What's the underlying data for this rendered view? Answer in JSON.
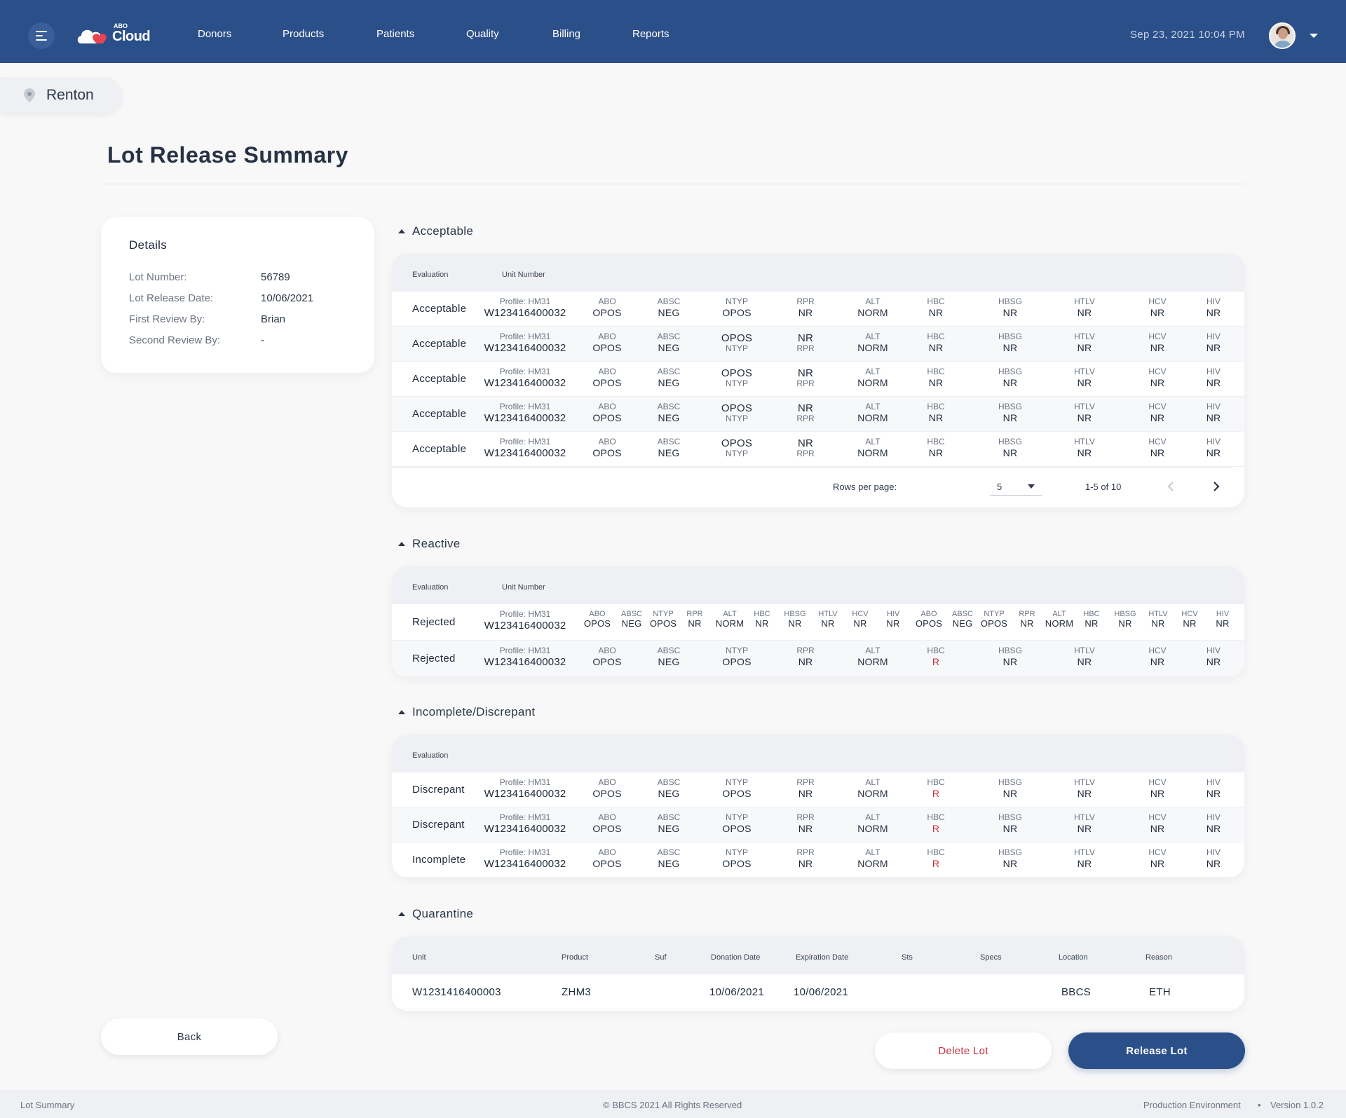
{
  "header": {
    "logo": {
      "small": "ABO",
      "main": "Cloud"
    },
    "nav": [
      "Donors",
      "Products",
      "Patients",
      "Quality",
      "Billing",
      "Reports"
    ],
    "datetime": "Sep 23, 2021 10:04 PM"
  },
  "location": "Renton",
  "page_title": "Lot Release Summary",
  "details": {
    "heading": "Details",
    "rows": [
      {
        "k": "Lot Number:",
        "v": "56789"
      },
      {
        "k": "Lot Release Date:",
        "v": "10/06/2021"
      },
      {
        "k": "First Review By:",
        "v": "Brian"
      },
      {
        "k": "Second Review By:",
        "v": "-"
      }
    ]
  },
  "acceptable": {
    "title": "Acceptable",
    "columns": {
      "evaluation": "Evaluation",
      "unit": "Unit Number"
    },
    "rows": [
      {
        "ev": "Acceptable",
        "profile": "Profile: HM31",
        "unit": "W123416400032",
        "ntyp_swap": false
      },
      {
        "ev": "Acceptable",
        "profile": "Profile: HM31",
        "unit": "W123416400032",
        "ntyp_swap": true
      },
      {
        "ev": "Acceptable",
        "profile": "Profile: HM31",
        "unit": "W123416400032",
        "ntyp_swap": true
      },
      {
        "ev": "Acceptable",
        "profile": "Profile: HM31",
        "unit": "W123416400032",
        "ntyp_swap": true
      },
      {
        "ev": "Acceptable",
        "profile": "Profile: HM31",
        "unit": "W123416400032",
        "ntyp_swap": true
      }
    ],
    "pager": {
      "rows_label": "Rows per page:",
      "rows_value": "5",
      "range": "1-5 of 10"
    }
  },
  "tests": [
    {
      "l": "ABO",
      "v": "OPOS"
    },
    {
      "l": "ABSC",
      "v": "NEG"
    },
    {
      "l": "NTYP",
      "v": "OPOS"
    },
    {
      "l": "RPR",
      "v": "NR"
    },
    {
      "l": "ALT",
      "v": "NORM"
    },
    {
      "l": "HBC",
      "v": "NR"
    },
    {
      "l": "HBSG",
      "v": "NR"
    },
    {
      "l": "HTLV",
      "v": "NR"
    },
    {
      "l": "HCV",
      "v": "NR"
    },
    {
      "l": "HIV",
      "v": "NR"
    }
  ],
  "reactive": {
    "title": "Reactive",
    "columns": {
      "evaluation": "Evaluation",
      "unit": "Unit Number"
    },
    "rows": [
      {
        "ev": "Rejected",
        "profile": "Profile: HM31",
        "unit": "W123416400032"
      },
      {
        "ev": "Rejected",
        "profile": "Profile: HM31",
        "unit": "W123416400032",
        "hbc": "R"
      }
    ]
  },
  "incomplete": {
    "title": "Incomplete/Discrepant",
    "columns": {
      "evaluation": "Evaluation"
    },
    "rows": [
      {
        "ev": "Discrepant",
        "profile": "Profile: HM31",
        "unit": "W123416400032",
        "hbc": "R"
      },
      {
        "ev": "Discrepant",
        "profile": "Profile: HM31",
        "unit": "W123416400032",
        "hbc": "R"
      },
      {
        "ev": "Incomplete",
        "profile": "Profile: HM31",
        "unit": "W123416400032",
        "hbc": "R"
      }
    ]
  },
  "quarantine": {
    "title": "Quarantine",
    "columns": [
      "Unit",
      "Product",
      "Suf",
      "Donation Date",
      "Expiration Date",
      "Sts",
      "Specs",
      "Location",
      "Reason"
    ],
    "rows": [
      {
        "unit": "W1231416400003",
        "product": "ZHM3",
        "suf": "",
        "donation": "10/06/2021",
        "expiration": "10/06/2021",
        "sts": "",
        "specs": "",
        "location": "BBCS",
        "reason": "ETH"
      }
    ]
  },
  "buttons": {
    "back": "Back",
    "delete": "Delete Lot",
    "release": "Release Lot"
  },
  "footer": {
    "left": "Lot Summary",
    "center": "© BBCS 2021 All Rights Reserved",
    "env": "Production Environment",
    "sep": "•",
    "version": "Version 1.0.2"
  },
  "colors": {
    "primary": "#2b4f89",
    "danger": "#c0313d",
    "logo_red": "#e8434f"
  }
}
